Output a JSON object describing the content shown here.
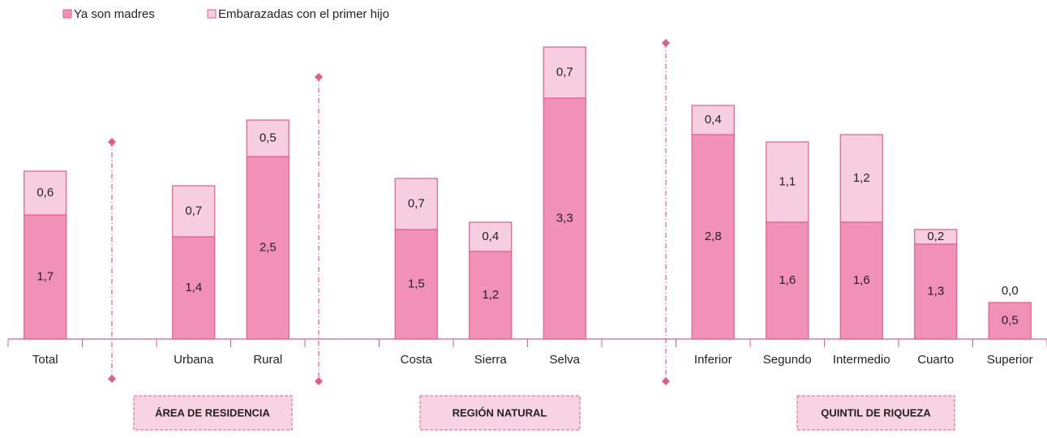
{
  "chart_data": {
    "type": "stacked_bar",
    "categories": [
      "Total",
      null,
      "Urbana",
      "Rural",
      null,
      "Costa",
      "Sierra",
      "Selva",
      null,
      "Inferior",
      "Segundo",
      "Intermedio",
      "Cuarto",
      "Superior"
    ],
    "series": [
      {
        "name": "Ya son madres",
        "color": "#f291b8",
        "values": [
          1.7,
          null,
          1.4,
          2.5,
          null,
          1.5,
          1.2,
          3.3,
          null,
          2.8,
          1.6,
          1.6,
          1.3,
          0.5
        ],
        "value_labels": [
          "1,7",
          null,
          "1,4",
          "2,5",
          null,
          "1,5",
          "1,2",
          "3,3",
          null,
          "2,8",
          "1,6",
          "1,6",
          "1,3",
          "0,5"
        ]
      },
      {
        "name": "Embarazadas con el primer hijo",
        "color": "#f7cde0",
        "values": [
          0.6,
          null,
          0.7,
          0.5,
          null,
          0.7,
          0.4,
          0.7,
          null,
          0.4,
          1.1,
          1.2,
          0.2,
          0.0
        ],
        "value_labels": [
          "0,6",
          null,
          "0,7",
          "0,5",
          null,
          "0,7",
          "0,4",
          "0,7",
          null,
          "0,4",
          "1,1",
          "1,2",
          "0,2",
          "0,0"
        ]
      }
    ],
    "groups": [
      "ÁREA DE RESIDENCIA",
      "REGIÓN NATURAL",
      "QUINTIL DE RIQUEZA"
    ]
  }
}
